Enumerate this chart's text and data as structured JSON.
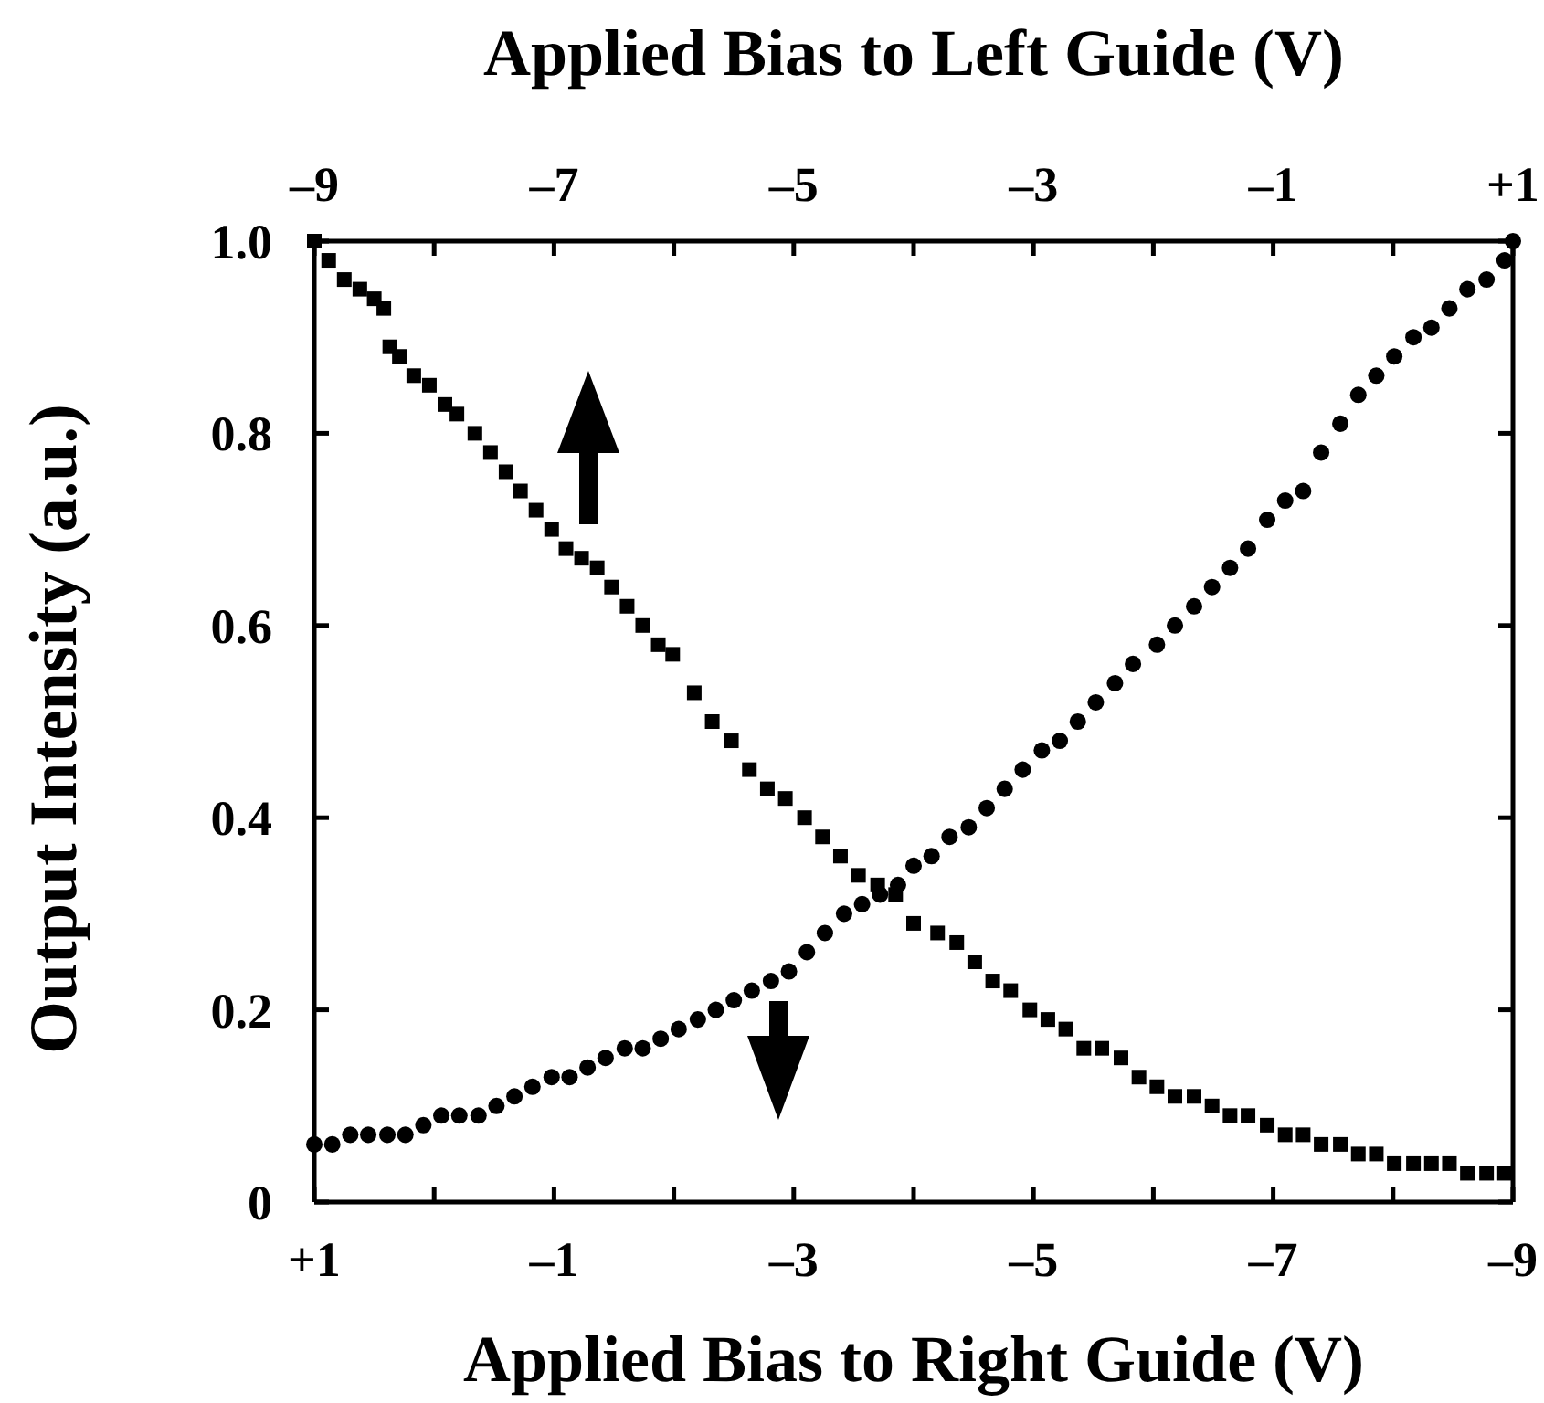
{
  "chart_data": {
    "type": "scatter",
    "x2label": "Applied Bias to Left Guide (V)",
    "xlabel": "Applied Bias to Right Guide (V)",
    "ylabel": "Output Intensity (a.u.)",
    "xlim": [
      1,
      -9
    ],
    "xticks": [
      {
        "value": 1,
        "label": "+1"
      },
      {
        "value": 0,
        "label": null
      },
      {
        "value": -1,
        "label": "–1"
      },
      {
        "value": -2,
        "label": null
      },
      {
        "value": -3,
        "label": "–3"
      },
      {
        "value": -4,
        "label": null
      },
      {
        "value": -5,
        "label": "–5"
      },
      {
        "value": -6,
        "label": null
      },
      {
        "value": -7,
        "label": "–7"
      },
      {
        "value": -8,
        "label": null
      },
      {
        "value": -9,
        "label": "–9"
      }
    ],
    "x2lim": [
      -9,
      1
    ],
    "x2ticks": [
      {
        "value": -9,
        "label": "–9"
      },
      {
        "value": -8,
        "label": null
      },
      {
        "value": -7,
        "label": "–7"
      },
      {
        "value": -6,
        "label": null
      },
      {
        "value": -5,
        "label": "–5"
      },
      {
        "value": -4,
        "label": null
      },
      {
        "value": -3,
        "label": "–3"
      },
      {
        "value": -2,
        "label": null
      },
      {
        "value": -1,
        "label": "–1"
      },
      {
        "value": 0,
        "label": null
      },
      {
        "value": 1,
        "label": "+1"
      }
    ],
    "ylim": [
      0,
      1
    ],
    "yticks": [
      0,
      0.2,
      0.4,
      0.6,
      0.8,
      {
        "value": 1,
        "label": "1.0"
      }
    ],
    "series": [
      {
        "axis": "x2",
        "marker": "square",
        "color": "#000000",
        "x": [
          -9,
          -8.88,
          -8.75,
          -8.62,
          -8.5,
          -8.42,
          -8.37,
          -8.29,
          -8.17,
          -8.04,
          -7.91,
          -7.81,
          -7.66,
          -7.53,
          -7.4,
          -7.28,
          -7.15,
          -7.02,
          -6.9,
          -6.77,
          -6.64,
          -6.52,
          -6.39,
          -6.26,
          -6.13,
          -6.01,
          -5.83,
          -5.68,
          -5.52,
          -5.37,
          -5.22,
          -5.07,
          -4.91,
          -4.76,
          -4.61,
          -4.46,
          -4.3,
          -4.15,
          -4,
          -3.8,
          -3.64,
          -3.49,
          -3.34,
          -3.19,
          -3.03,
          -2.88,
          -2.73,
          -2.58,
          -2.43,
          -2.27,
          -2.12,
          -1.97,
          -1.82,
          -1.66,
          -1.51,
          -1.36,
          -1.21,
          -1.05,
          -0.9,
          -0.75,
          -0.6,
          -0.44,
          -0.29,
          -0.14,
          0.01,
          0.17,
          0.32,
          0.47,
          0.62,
          0.78,
          0.93
        ],
        "values": [
          1,
          0.98,
          0.96,
          0.95,
          0.94,
          0.93,
          0.89,
          0.88,
          0.86,
          0.85,
          0.83,
          0.82,
          0.8,
          0.78,
          0.76,
          0.74,
          0.72,
          0.7,
          0.68,
          0.67,
          0.66,
          0.64,
          0.62,
          0.6,
          0.58,
          0.57,
          0.53,
          0.5,
          0.48,
          0.45,
          0.43,
          0.42,
          0.4,
          0.38,
          0.36,
          0.34,
          0.33,
          0.32,
          0.29,
          0.28,
          0.27,
          0.25,
          0.23,
          0.22,
          0.2,
          0.19,
          0.18,
          0.16,
          0.16,
          0.15,
          0.13,
          0.12,
          0.11,
          0.11,
          0.1,
          0.09,
          0.09,
          0.08,
          0.07,
          0.07,
          0.06,
          0.06,
          0.05,
          0.05,
          0.04,
          0.04,
          0.04,
          0.04,
          0.03,
          0.03,
          0.03
        ]
      },
      {
        "marker": "circle",
        "color": "#000000",
        "x": [
          1,
          0.85,
          0.7,
          0.55,
          0.39,
          0.24,
          0.09,
          -0.06,
          -0.21,
          -0.37,
          -0.52,
          -0.67,
          -0.82,
          -0.98,
          -1.13,
          -1.28,
          -1.43,
          -1.59,
          -1.74,
          -1.89,
          -2.04,
          -2.2,
          -2.35,
          -2.5,
          -2.65,
          -2.81,
          -2.96,
          -3.11,
          -3.26,
          -3.42,
          -3.57,
          -3.72,
          -3.87,
          -4,
          -4.15,
          -4.3,
          -4.46,
          -4.61,
          -4.76,
          -4.91,
          -5.07,
          -5.22,
          -5.37,
          -5.52,
          -5.68,
          -5.83,
          -6.03,
          -6.18,
          -6.34,
          -6.49,
          -6.64,
          -6.79,
          -6.95,
          -7.1,
          -7.25,
          -7.4,
          -7.56,
          -7.71,
          -7.86,
          -8.01,
          -8.17,
          -8.32,
          -8.47,
          -8.62,
          -8.78,
          -8.93,
          -9
        ],
        "values": [
          0.06,
          0.06,
          0.07,
          0.07,
          0.07,
          0.07,
          0.08,
          0.09,
          0.09,
          0.09,
          0.1,
          0.11,
          0.12,
          0.13,
          0.13,
          0.14,
          0.15,
          0.16,
          0.16,
          0.17,
          0.18,
          0.19,
          0.2,
          0.21,
          0.22,
          0.23,
          0.24,
          0.26,
          0.28,
          0.3,
          0.31,
          0.32,
          0.33,
          0.35,
          0.36,
          0.38,
          0.39,
          0.41,
          0.43,
          0.45,
          0.47,
          0.48,
          0.5,
          0.52,
          0.54,
          0.56,
          0.58,
          0.6,
          0.62,
          0.64,
          0.66,
          0.68,
          0.71,
          0.73,
          0.74,
          0.78,
          0.81,
          0.84,
          0.86,
          0.88,
          0.9,
          0.91,
          0.93,
          0.95,
          0.96,
          0.98,
          1
        ]
      }
    ]
  }
}
